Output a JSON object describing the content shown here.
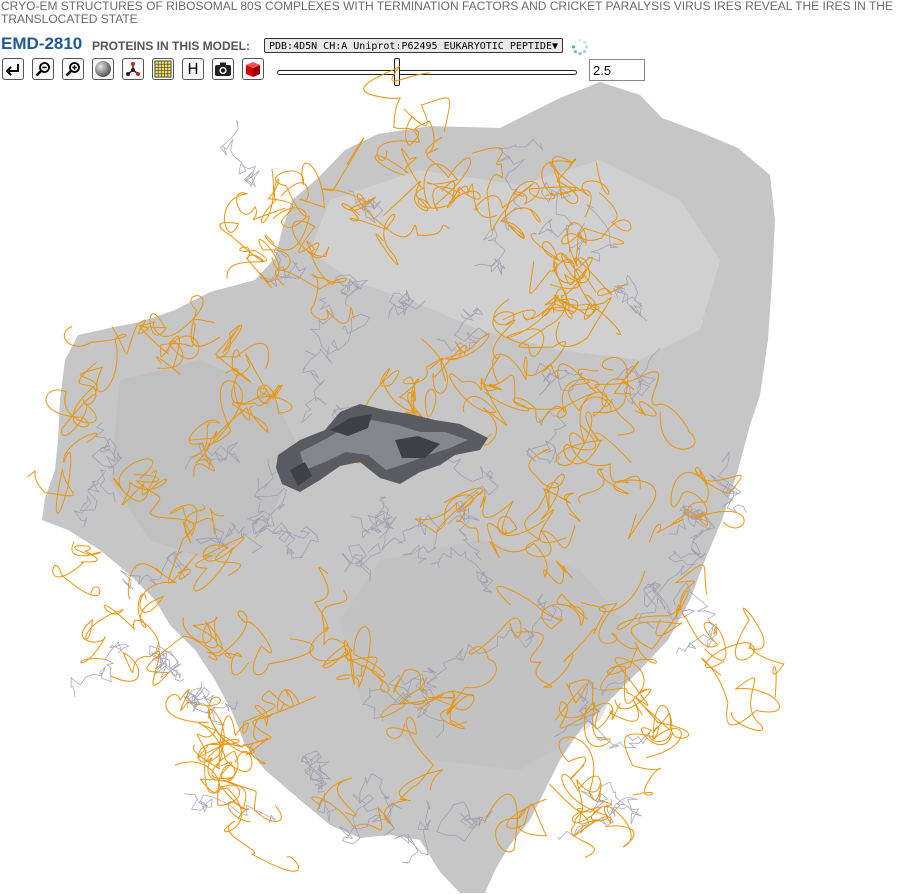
{
  "header": {
    "title": "CRYO-EM STRUCTURES OF RIBOSOMAL 80S COMPLEXES WITH TERMINATION FACTORS AND CRICKET PARALYSIS VIRUS IRES REVEAL THE IRES IN THE TRANSLOCATED STATE",
    "entry_id": "EMD-2810",
    "proteins_label": "PROTEINS IN THIS MODEL:",
    "protein_select": {
      "selected": "PDB:4D5N CH:A Uniprot:P62495 EUKARYOTIC PEPTIDE"
    }
  },
  "toolbar": {
    "buttons": [
      {
        "name": "reset-view-button",
        "icon": "reset-arrow-icon"
      },
      {
        "name": "zoom-out-button",
        "icon": "zoom-out-icon"
      },
      {
        "name": "zoom-in-button",
        "icon": "zoom-in-icon"
      },
      {
        "name": "surface-toggle-button",
        "icon": "sphere-icon"
      },
      {
        "name": "molecule-toggle-button",
        "icon": "molecule-icon"
      },
      {
        "name": "grid-toggle-button",
        "icon": "grid-icon"
      },
      {
        "name": "hydrogens-button",
        "icon": "letter-h-icon",
        "label": "H"
      },
      {
        "name": "snapshot-button",
        "icon": "camera-icon"
      },
      {
        "name": "color-cube-button",
        "icon": "cube-icon"
      }
    ],
    "contour_level": {
      "value": "2.5",
      "slider_fraction": 0.4
    }
  },
  "viewer": {
    "map_color": "#c6c6c6",
    "trace_color": "#e8960f",
    "protein_color": "#9a9ab0",
    "highlight_color": "#5a5a62"
  }
}
